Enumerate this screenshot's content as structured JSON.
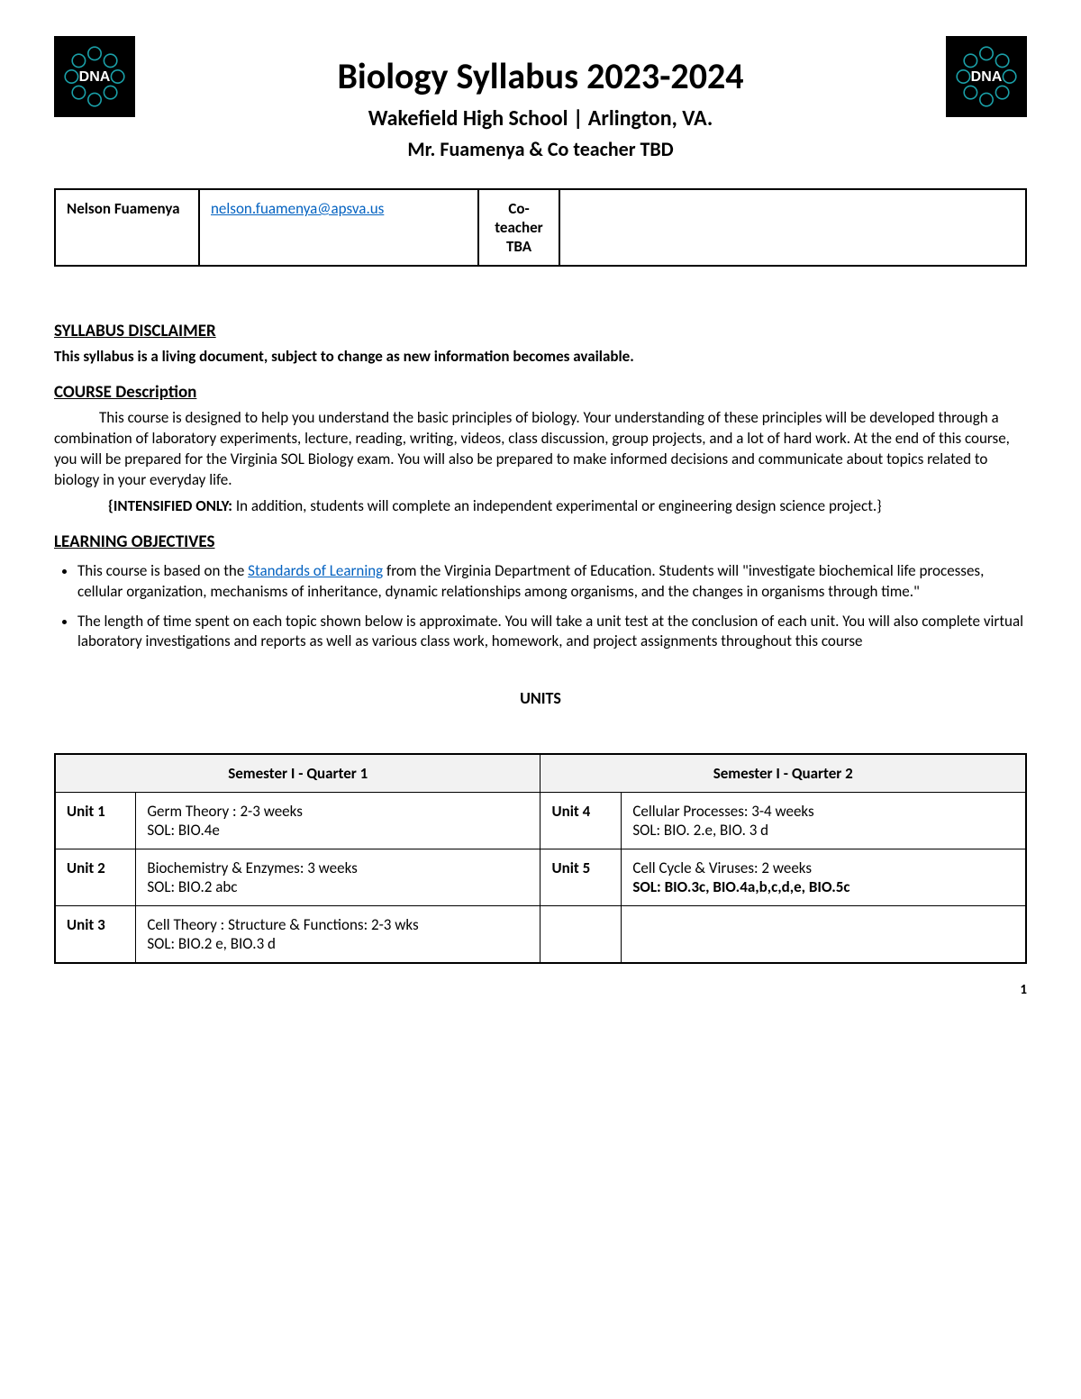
{
  "header": {
    "title": "Biology Syllabus 2023-2024",
    "subtitle1": "Wakefield High School | Arlington, VA.",
    "subtitle2": "Mr. Fuamenya &  Co teacher TBD",
    "badge_text": "DNA",
    "badge_bg": "#000000",
    "badge_ring_color": "#1aa0a8",
    "badge_text_color": "#ffffff"
  },
  "contact": {
    "name": "Nelson Fuamenya",
    "email": "nelson.fuamenya@apsva.us",
    "co_label": "Co-teacher TBA"
  },
  "disclaimer": {
    "heading": "SYLLABUS DISCLAIMER",
    "text": "This syllabus is a living document, subject to change as new information becomes available."
  },
  "course": {
    "heading": "COURSE Description",
    "p1_prefix": "This course is designed to help you understand the basic principles of biology.  Your understanding of these principles will be developed through a combination of laboratory experiments, lecture, reading, writing, videos, class discussion, group projects, and a lot of hard work. At the end of this course, you will be prepared for the Virginia SOL Biology exam. You will also be prepared to make informed decisions and communicate about topics related to biology in your everyday life.",
    "intensified_label": "{INTENSIFIED ONLY:",
    "intensified_rest": "  In addition, students will complete an independent experimental or engineering design science project.}"
  },
  "objectives": {
    "heading": "LEARNING OBJECTIVES",
    "li1_pre": "This course is based on the ",
    "li1_link": "Standards of Learning",
    "li1_post": " from the Virginia Department of Education.  Students will \"investigate biochemical life processes, cellular organization, mechanisms of inheritance, dynamic relationships among organisms, and the changes in organisms through time.\"",
    "li2": "The length of time spent on each topic shown below is approximate. You will take a unit test at the conclusion of each unit. You will also complete virtual laboratory investigations and reports as well as various class work, homework, and project assignments throughout this course"
  },
  "units": {
    "heading": "UNITS",
    "col1": "Semester I - Quarter 1",
    "col2": "Semester I - Quarter 2",
    "rows": [
      {
        "l_unit": "Unit 1",
        "l_title": "Germ Theory : 2-3 weeks",
        "l_sol": "SOL: BIO.4e",
        "l_sol_bold": false,
        "r_unit": "Unit 4",
        "r_title": "Cellular Processes: 3-4 weeks",
        "r_sol": "SOL: BIO. 2.e, BIO. 3 d",
        "r_sol_bold": false
      },
      {
        "l_unit": "Unit 2",
        "l_title": "Biochemistry & Enzymes: 3 weeks",
        "l_sol": "SOL: BIO.2 abc",
        "l_sol_bold": false,
        "r_unit": "Unit 5",
        "r_title": "Cell Cycle & Viruses: 2 weeks",
        "r_sol": "SOL: BIO.3c, BIO.4a,b,c,d,e, BIO.5c",
        "r_sol_bold": true
      },
      {
        "l_unit": "Unit 3",
        "l_title": "Cell Theory : Structure & Functions: 2-3 wks",
        "l_sol": "SOL: BIO.2 e, BIO.3 d",
        "l_sol_bold": false,
        "r_unit": "",
        "r_title": "",
        "r_sol": "",
        "r_sol_bold": false
      }
    ]
  },
  "page_number": "1",
  "colors": {
    "link": "#0563c1",
    "table_border": "#000000",
    "th_bg": "#f2f2f2"
  }
}
